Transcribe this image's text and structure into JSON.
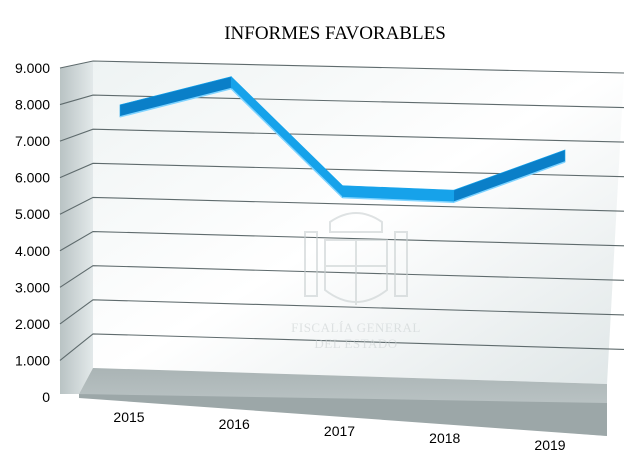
{
  "chart_data": {
    "type": "line",
    "title": "INFORMES FAVORABLES",
    "categories": [
      "2015",
      "2016",
      "2017",
      "2018",
      "2019"
    ],
    "values": [
      7500,
      8400,
      5300,
      5250,
      6500
    ],
    "y_ticks": [
      "0",
      "1.000",
      "2.000",
      "3.000",
      "4.000",
      "5.000",
      "6.000",
      "7.000",
      "8.000",
      "9.000"
    ],
    "ylim": [
      0,
      9000
    ],
    "xlabel": "",
    "ylabel": "",
    "grid": true,
    "legend": "none",
    "style": "3d",
    "colors": {
      "line_top": "#16a2ea",
      "line_front": "#0a7fc8",
      "wall": "#dfe7e8",
      "floor": "#b3bcbd"
    }
  },
  "watermark": {
    "line1": "FISCALÍA GENERAL",
    "line2": "DEL ESTADO",
    "icon": "coat-of-arms-icon"
  }
}
